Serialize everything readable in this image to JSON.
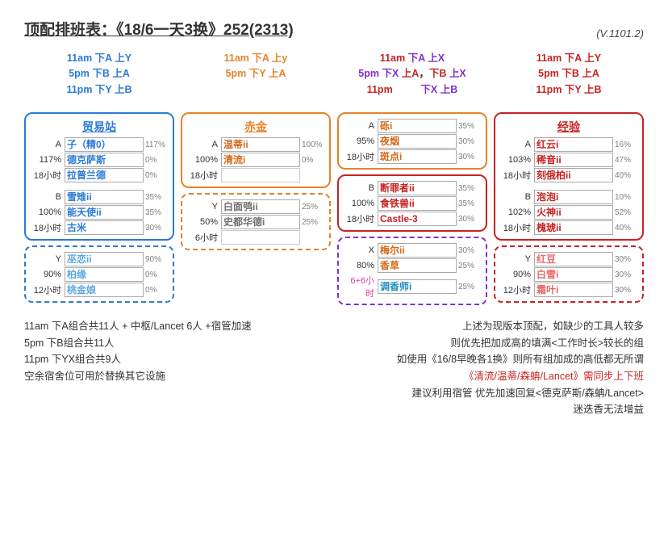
{
  "title": "顶配排班表：《18/6一天3换》252(2313)",
  "version": "(V.1101.2)",
  "colors": {
    "blue": "#2b7bd4",
    "orange": "#e8822a",
    "darkorange": "#d46a18",
    "red": "#c72323",
    "purple": "#8030d0",
    "pink": "#e040a0",
    "teal": "#2090c0",
    "gray": "#707070",
    "lightgray": "#b0b0b0"
  },
  "sched": [
    [
      {
        "text": "11am 下A 上Y",
        "color": "#2b7bd4"
      },
      {
        "text": "5pm 下B 上A",
        "color": "#2b7bd4"
      },
      {
        "text": "11pm 下Y 上B",
        "color": "#2b7bd4"
      }
    ],
    [
      {
        "text": "11am 下A 上y",
        "color": "#e8822a"
      },
      {
        "text": "5pm 下Y 上A",
        "color": "#e8822a"
      }
    ],
    [
      {
        "pre": "11am ",
        "preColor": "#c72323",
        "text": "下A 上X",
        "color": "#8030d0"
      },
      {
        "pre": "5pm ",
        "preColor": "#8030d0",
        "text": "下X 上A，下B 上X",
        "color": "#c72323",
        "mix": true
      },
      {
        "pre": "11pm",
        "preColor": "#c72323",
        "pad": "          ",
        "text": "下X 上B",
        "color": "#8030d0"
      }
    ],
    [
      {
        "text": "11am 下A 上Y",
        "color": "#c72323"
      },
      {
        "text": "5pm 下B 上A",
        "color": "#c72323"
      },
      {
        "text": "11pm 下Y 上B",
        "color": "#c72323"
      }
    ]
  ],
  "cols": [
    {
      "cards": [
        {
          "title": "贸易站",
          "titleColor": "#2b7bd4",
          "border": "#2b7bd4",
          "style": "solid",
          "opColor": "#2b7bd4",
          "rows": [
            {
              "l": "A",
              "o": "子（精0）",
              "p": "117%"
            },
            {
              "l": "117%",
              "o": "德克萨斯",
              "p": "0%"
            },
            {
              "l": "18小时",
              "o": "拉普兰德",
              "p": "0%"
            }
          ],
          "rows2": [
            {
              "l": "B",
              "o": "雪雉ii",
              "p": "35%"
            },
            {
              "l": "100%",
              "o": "能天使ii",
              "p": "35%"
            },
            {
              "l": "18小时",
              "o": "古米",
              "p": "30%"
            }
          ]
        },
        {
          "border": "#2b7bd4",
          "style": "dashed",
          "opColor": "#5fa9e0",
          "rows": [
            {
              "l": "Y",
              "o": "巫恋ii",
              "p": "90%"
            },
            {
              "l": "90%",
              "o": "柏缘",
              "p": "0%"
            },
            {
              "l": "12小时",
              "o": "桃金娘",
              "p": "0%"
            }
          ]
        }
      ]
    },
    {
      "cards": [
        {
          "title": "赤金",
          "titleColor": "#e8822a",
          "border": "#e8822a",
          "style": "solid",
          "opColor": "#d46a18",
          "rows": [
            {
              "l": "A",
              "o": "温蒂ii",
              "p": "100%"
            },
            {
              "l": "100%",
              "o": "清流i",
              "p": "0%"
            },
            {
              "l": "18小时",
              "o": "",
              "p": ""
            }
          ]
        },
        {
          "border": "#e8822a",
          "style": "dashed",
          "opColor": "#707070",
          "rows": [
            {
              "l": "Y",
              "o": "白面鸮ii",
              "p": "25%"
            },
            {
              "l": "50%",
              "o": "史都华德i",
              "p": "25%"
            },
            {
              "l": "6小时",
              "o": "",
              "p": ""
            }
          ]
        }
      ]
    },
    {
      "cards": [
        {
          "border": "#e8822a",
          "style": "solid",
          "opColor": "#d46a18",
          "rows": [
            {
              "l": "A",
              "o": "砾i",
              "p": "35%"
            },
            {
              "l": "95%",
              "o": "夜烟",
              "p": "30%"
            },
            {
              "l": "18小时",
              "o": "斑点i",
              "p": "30%"
            }
          ]
        },
        {
          "border": "#c72323",
          "style": "solid",
          "opColor": "#c72323",
          "rows": [
            {
              "l": "B",
              "o": "断罪者ii",
              "p": "35%"
            },
            {
              "l": "100%",
              "o": "食铁兽ii",
              "p": "35%"
            },
            {
              "l": "18小时",
              "o": "Castle-3",
              "p": "30%"
            }
          ]
        },
        {
          "border": "#8030d0",
          "style": "dashed",
          "opColor": "#d46a18",
          "rows": [
            {
              "l": "X",
              "o": "梅尔ii",
              "p": "30%"
            },
            {
              "l": "80%",
              "o": "香草",
              "p": "25%"
            },
            {
              "l": "6+6小时",
              "lcolor": "#e040a0",
              "o": "调香师i",
              "ocolor": "#2090c0",
              "p": "25%"
            }
          ]
        }
      ]
    },
    {
      "cards": [
        {
          "title": "经验",
          "titleColor": "#c72323",
          "border": "#c72323",
          "style": "solid",
          "opColor": "#c72323",
          "rows": [
            {
              "l": "A",
              "o": "红云i",
              "p": "16%"
            },
            {
              "l": "103%",
              "o": "稀音ii",
              "p": "47%"
            },
            {
              "l": "18小时",
              "o": "刻俄柏ii",
              "p": "40%"
            }
          ],
          "rows2": [
            {
              "l": "B",
              "o": "泡泡i",
              "p": "10%"
            },
            {
              "l": "102%",
              "o": "火神ii",
              "p": "52%"
            },
            {
              "l": "18小时",
              "o": "槐琥ii",
              "p": "40%"
            }
          ]
        },
        {
          "border": "#c72323",
          "style": "dashed",
          "opColor": "#e86868",
          "rows": [
            {
              "l": "Y",
              "o": "红豆",
              "p": "30%"
            },
            {
              "l": "90%",
              "o": "白雪i",
              "p": "30%"
            },
            {
              "l": "12小时",
              "o": "霜叶i",
              "p": "30%"
            }
          ]
        }
      ]
    }
  ],
  "footer_left": [
    "11am 下A组合共11人 + 中枢/Lancet 6人 +宿管加速",
    " 5pm 下B组合共11人",
    "11pm 下YX组合共9人",
    "空余宿舍位可用於替换其它设施"
  ],
  "footer_right": [
    {
      "t": "上述为现版本顶配，如缺少的工具人较多"
    },
    {
      "t": "则优先把加成高的填满<工作时长>较长的组"
    },
    {
      "t": "如使用《16/8早晚各1换》则所有组加成的高低都无所谓"
    },
    {
      "t": "《清流/温蒂/森蚺/Lancet》需同步上下班",
      "c": "#c72323"
    },
    {
      "t": "建议利用宿管 优先加速回复<德克萨斯/森蚺/Lancet>"
    },
    {
      "t": "迷迭香无法增益"
    }
  ]
}
